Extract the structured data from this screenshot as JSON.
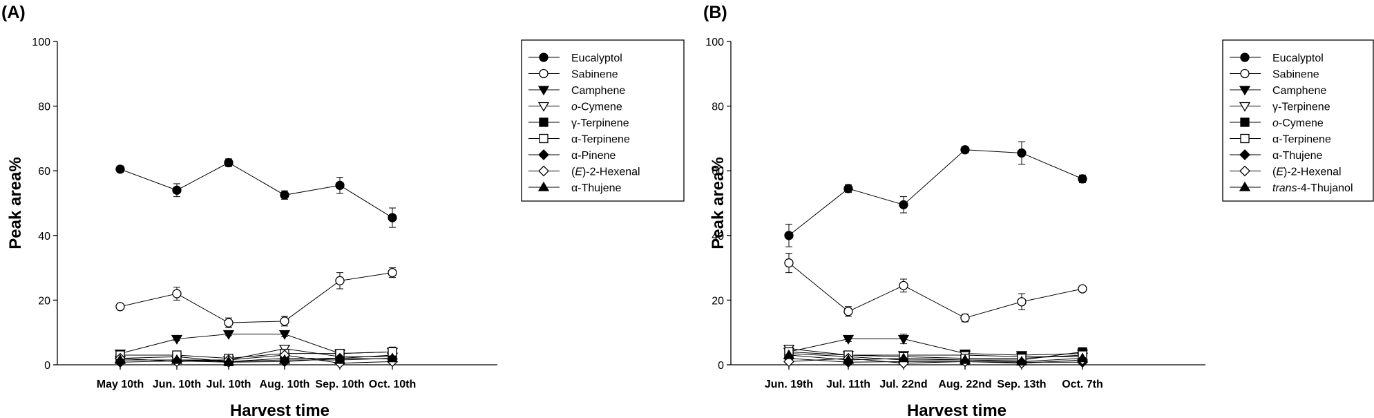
{
  "figure": {
    "panels": [
      "(A)",
      "(B)"
    ]
  },
  "chart_data": [
    {
      "type": "line",
      "panel_label": "(A)",
      "xlabel": "Harvest time",
      "ylabel": "Peak area%",
      "ylim": [
        0,
        100
      ],
      "yticks": [
        0,
        20,
        40,
        60,
        80,
        100
      ],
      "grid": false,
      "legend_position": "top-right",
      "categories": [
        "May 10th",
        "Jun. 10th",
        "Jul. 10th",
        "Aug. 10th",
        "Sep. 10th",
        "Oct. 10th"
      ],
      "series": [
        {
          "name": "Eucalyptol",
          "marker": "circle-filled",
          "values": [
            60.5,
            54.0,
            62.5,
            52.5,
            55.5,
            45.5
          ],
          "errors": [
            1.0,
            2.0,
            1.2,
            1.3,
            2.5,
            3.0
          ]
        },
        {
          "name": "Sabinene",
          "marker": "circle-open",
          "values": [
            18.0,
            22.0,
            13.0,
            13.5,
            26.0,
            28.5
          ],
          "errors": [
            0.8,
            2.0,
            1.5,
            1.5,
            2.5,
            1.5
          ]
        },
        {
          "name": "Camphene",
          "marker": "triangle-down-filled",
          "values": [
            3.5,
            8.0,
            9.5,
            9.5,
            3.5,
            4.0
          ],
          "errors": [
            0.5,
            0.5,
            0.5,
            0.8,
            0.5,
            1.5
          ]
        },
        {
          "name": "o-Cymene",
          "name_italic": "o",
          "name_rest": "-Cymene",
          "marker": "triangle-down-open",
          "values": [
            1.5,
            1.5,
            1.5,
            5.0,
            2.5,
            2.5
          ],
          "errors": [
            0.3,
            0.3,
            0.3,
            0.8,
            0.5,
            0.5
          ]
        },
        {
          "name": "γ-Terpinene",
          "marker": "square-filled",
          "values": [
            2.0,
            2.5,
            1.0,
            2.0,
            2.0,
            3.0
          ],
          "errors": [
            0.3,
            0.3,
            0.3,
            0.4,
            0.4,
            0.4
          ]
        },
        {
          "name": "α-Terpinene",
          "marker": "square-open",
          "values": [
            3.0,
            3.0,
            2.0,
            3.5,
            3.5,
            4.0
          ],
          "errors": [
            0.3,
            0.3,
            0.3,
            0.5,
            0.5,
            0.5
          ]
        },
        {
          "name": "α-Pinene",
          "marker": "diamond-filled",
          "values": [
            0.8,
            1.2,
            0.8,
            1.0,
            2.0,
            1.8
          ],
          "errors": [
            0.2,
            0.2,
            0.2,
            0.2,
            0.3,
            0.3
          ]
        },
        {
          "name": "(E)-2-Hexenal",
          "name_pre": "(",
          "name_italic": "E",
          "name_rest": ")-2-Hexenal",
          "marker": "diamond-open",
          "values": [
            2.0,
            1.0,
            1.5,
            3.0,
            0.5,
            1.0
          ],
          "errors": [
            0.2,
            0.2,
            0.2,
            0.4,
            0.2,
            0.2
          ]
        },
        {
          "name": "α-Thujene",
          "marker": "triangle-up-filled",
          "values": [
            1.5,
            1.5,
            1.0,
            1.5,
            1.5,
            2.0
          ],
          "errors": [
            0.2,
            0.2,
            0.2,
            0.2,
            0.2,
            0.2
          ]
        }
      ]
    },
    {
      "type": "line",
      "panel_label": "(B)",
      "xlabel": "Harvest time",
      "ylabel": "Peak area%",
      "ylim": [
        0,
        100
      ],
      "yticks": [
        0,
        20,
        40,
        60,
        80,
        100
      ],
      "grid": false,
      "legend_position": "top-right",
      "categories": [
        "Jun. 19th",
        "Jul. 11th",
        "Jul. 22nd",
        "Aug. 22nd",
        "Sep. 13th",
        "Oct. 7th"
      ],
      "series": [
        {
          "name": "Eucalyptol",
          "marker": "circle-filled",
          "values": [
            40.0,
            54.5,
            49.5,
            66.5,
            65.5,
            57.5
          ],
          "errors": [
            3.5,
            1.2,
            2.5,
            1.0,
            3.5,
            1.2
          ]
        },
        {
          "name": "Sabinene",
          "marker": "circle-open",
          "values": [
            31.5,
            16.5,
            24.5,
            14.5,
            19.5,
            23.5
          ],
          "errors": [
            3.0,
            1.5,
            2.0,
            1.2,
            2.5,
            0.8
          ]
        },
        {
          "name": "Camphene",
          "marker": "triangle-down-filled",
          "values": [
            4.0,
            8.0,
            8.0,
            3.5,
            3.0,
            3.5
          ],
          "errors": [
            0.5,
            0.8,
            1.5,
            0.5,
            0.5,
            0.5
          ]
        },
        {
          "name": "γ-Terpinene",
          "marker": "triangle-down-open",
          "values": [
            5.0,
            3.0,
            3.0,
            3.0,
            2.5,
            2.5
          ],
          "errors": [
            0.8,
            0.3,
            0.3,
            0.3,
            0.3,
            0.3
          ]
        },
        {
          "name": "o-Cymene",
          "name_italic": "o",
          "name_rest": "-Cymene",
          "marker": "square-filled",
          "values": [
            3.5,
            2.5,
            1.5,
            1.5,
            1.5,
            4.0
          ],
          "errors": [
            0.3,
            0.3,
            0.3,
            0.3,
            0.3,
            0.4
          ]
        },
        {
          "name": "α-Terpinene",
          "marker": "square-open",
          "values": [
            4.0,
            3.0,
            2.5,
            2.0,
            2.0,
            3.0
          ],
          "errors": [
            0.3,
            0.3,
            0.3,
            0.3,
            0.3,
            0.3
          ]
        },
        {
          "name": "α-Thujene",
          "marker": "diamond-filled",
          "values": [
            2.0,
            0.8,
            1.0,
            1.0,
            0.8,
            0.8
          ],
          "errors": [
            0.2,
            0.2,
            0.2,
            0.2,
            0.2,
            0.2
          ]
        },
        {
          "name": "(E)-2-Hexenal",
          "name_pre": "(",
          "name_italic": "E",
          "name_rest": ")-2-Hexenal",
          "marker": "diamond-open",
          "values": [
            1.0,
            2.0,
            0.5,
            1.0,
            0.5,
            1.5
          ],
          "errors": [
            0.2,
            0.2,
            0.2,
            0.2,
            0.2,
            0.2
          ]
        },
        {
          "name": "trans-4-Thujanol",
          "name_italic": "trans",
          "name_rest": "-4-Thujanol",
          "marker": "triangle-up-filled",
          "values": [
            3.0,
            1.5,
            2.0,
            1.5,
            1.0,
            2.0
          ],
          "errors": [
            0.2,
            0.2,
            0.2,
            0.2,
            0.2,
            0.2
          ]
        }
      ]
    }
  ]
}
